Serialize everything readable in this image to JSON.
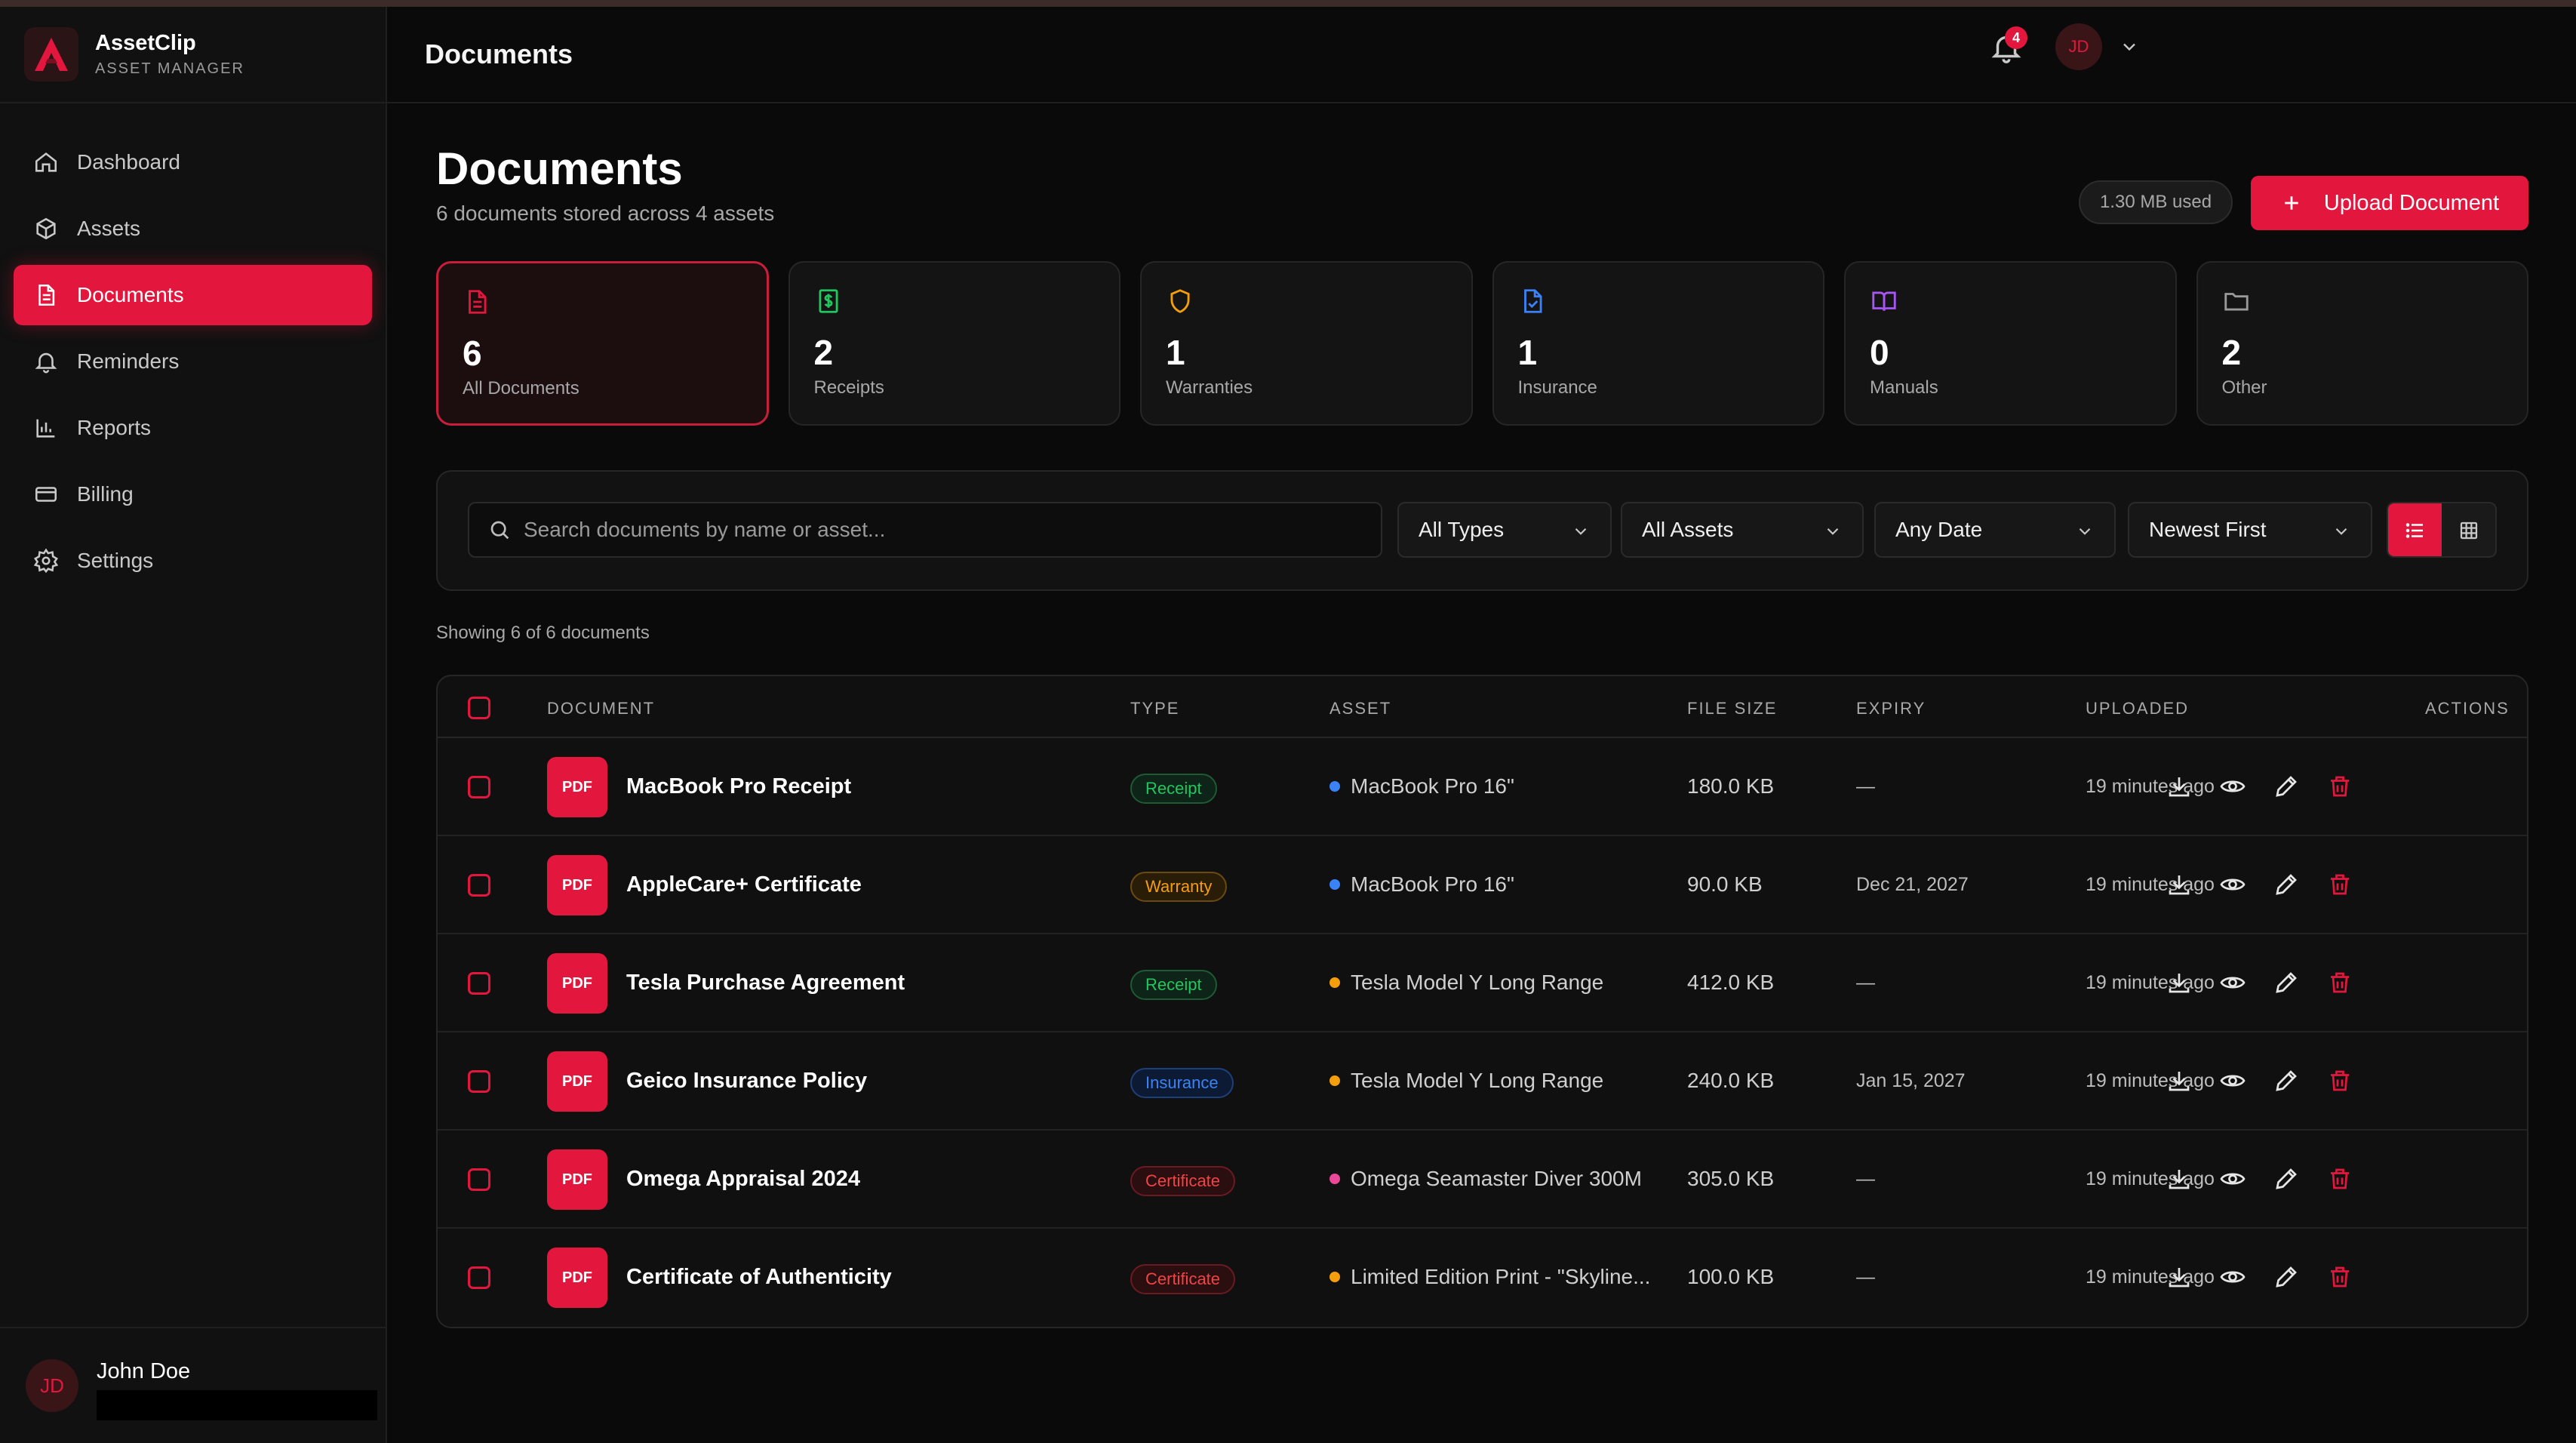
{
  "brand": {
    "name": "AssetClip",
    "subtitle": "ASSET MANAGER"
  },
  "nav": [
    {
      "label": "Dashboard",
      "icon": "home-icon"
    },
    {
      "label": "Assets",
      "icon": "box-icon"
    },
    {
      "label": "Documents",
      "icon": "document-icon",
      "active": true
    },
    {
      "label": "Reminders",
      "icon": "bell-icon"
    },
    {
      "label": "Reports",
      "icon": "bar-chart-icon"
    },
    {
      "label": "Billing",
      "icon": "credit-card-icon"
    },
    {
      "label": "Settings",
      "icon": "gear-icon"
    }
  ],
  "user": {
    "name": "John Doe",
    "initials": "JD"
  },
  "header": {
    "title": "Documents",
    "notification_count": "4"
  },
  "page": {
    "title": "Documents",
    "subtitle": "6 documents stored across 4 assets",
    "storage_used": "1.30 MB used",
    "upload_label": "Upload Document"
  },
  "stats": [
    {
      "count": "6",
      "label": "All Documents",
      "icon": "document-icon",
      "color": "#e3173d"
    },
    {
      "count": "2",
      "label": "Receipts",
      "icon": "receipt-icon",
      "color": "#22c55e"
    },
    {
      "count": "1",
      "label": "Warranties",
      "icon": "shield-icon",
      "color": "#f59e0b"
    },
    {
      "count": "1",
      "label": "Insurance",
      "icon": "file-check-icon",
      "color": "#3b82f6"
    },
    {
      "count": "0",
      "label": "Manuals",
      "icon": "book-icon",
      "color": "#a855f7"
    },
    {
      "count": "2",
      "label": "Other",
      "icon": "folder-icon",
      "color": "#9a9a9a"
    }
  ],
  "filters": {
    "search_placeholder": "Search documents by name or asset...",
    "type": "All Types",
    "assets": "All Assets",
    "date": "Any Date",
    "sort": "Newest First"
  },
  "showing": "Showing 6 of 6 documents",
  "table": {
    "headers": [
      "DOCUMENT",
      "TYPE",
      "ASSET",
      "FILE SIZE",
      "EXPIRY",
      "UPLOADED",
      "ACTIONS"
    ],
    "file_badge": "PDF",
    "rows": [
      {
        "name": "MacBook Pro Receipt",
        "type": "Receipt",
        "asset": "MacBook Pro 16\"",
        "asset_color": "#3b82f6",
        "size": "180.0 KB",
        "expiry": "—",
        "uploaded": "19 minutes ago"
      },
      {
        "name": "AppleCare+ Certificate",
        "type": "Warranty",
        "asset": "MacBook Pro 16\"",
        "asset_color": "#3b82f6",
        "size": "90.0 KB",
        "expiry": "Dec 21, 2027",
        "uploaded": "19 minutes ago"
      },
      {
        "name": "Tesla Purchase Agreement",
        "type": "Receipt",
        "asset": "Tesla Model Y Long Range",
        "asset_color": "#f59e0b",
        "size": "412.0 KB",
        "expiry": "—",
        "uploaded": "19 minutes ago"
      },
      {
        "name": "Geico Insurance Policy",
        "type": "Insurance",
        "asset": "Tesla Model Y Long Range",
        "asset_color": "#f59e0b",
        "size": "240.0 KB",
        "expiry": "Jan 15, 2027",
        "uploaded": "19 minutes ago"
      },
      {
        "name": "Omega Appraisal 2024",
        "type": "Certificate",
        "asset": "Omega Seamaster Diver 300M",
        "asset_color": "#ec4899",
        "size": "305.0 KB",
        "expiry": "—",
        "uploaded": "19 minutes ago"
      },
      {
        "name": "Certificate of Authenticity",
        "type": "Certificate",
        "asset": "Limited Edition Print - \"Skyline...",
        "asset_color": "#f59e0b",
        "size": "100.0 KB",
        "expiry": "—",
        "uploaded": "19 minutes ago"
      }
    ]
  },
  "type_colors": {
    "Receipt": {
      "fg": "#22c55e",
      "bg": "#0f2418",
      "border": "#1e5a33"
    },
    "Warranty": {
      "fg": "#f59e0b",
      "bg": "#2a1d08",
      "border": "#6b4a10"
    },
    "Insurance": {
      "fg": "#3b82f6",
      "bg": "#0d1a33",
      "border": "#1e3f7a"
    },
    "Certificate": {
      "fg": "#ef4444",
      "bg": "#2a0e10",
      "border": "#6b1a22"
    }
  }
}
